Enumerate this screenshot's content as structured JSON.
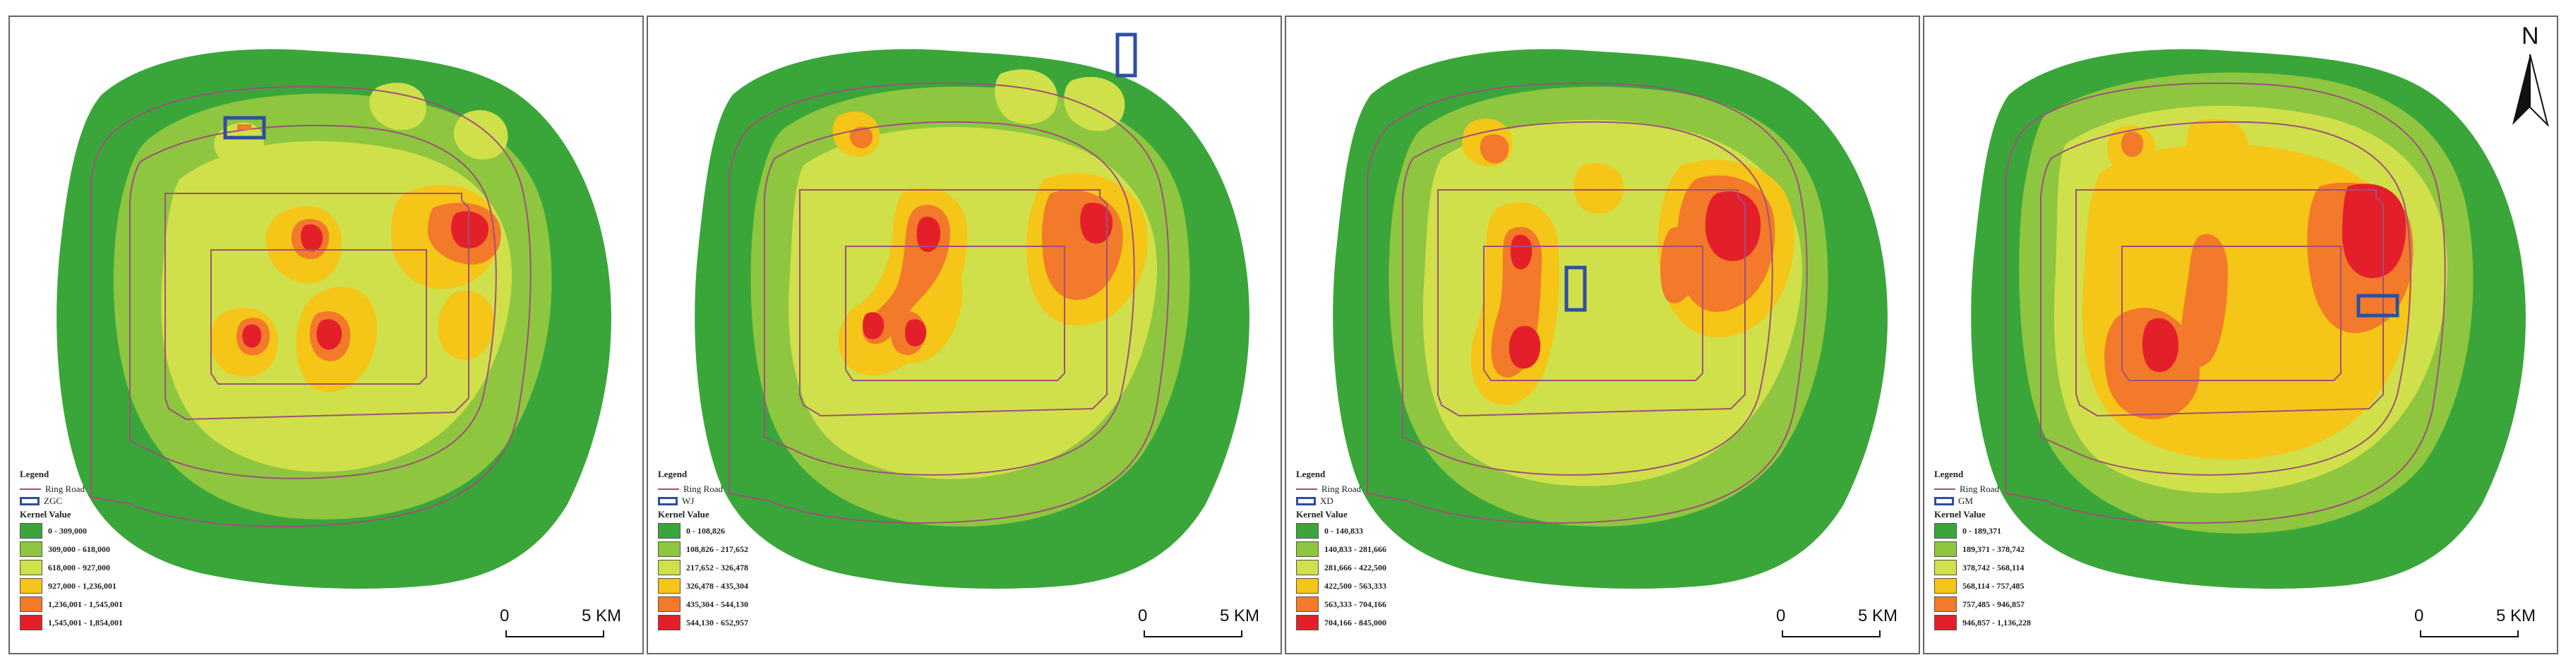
{
  "colors": {
    "c1": "#3aa63a",
    "c2": "#8ec63f",
    "c3": "#cfe04a",
    "c4": "#f5c518",
    "c5": "#f27a2a",
    "c6": "#e3202a",
    "ring": "#a0507a",
    "aoi": "#2f4f9f"
  },
  "panels": [
    {
      "legend_title": "Legend",
      "ring_road_label": "Ring Road",
      "aoi_label": "ZGC",
      "kernel_title": "Kernel Value",
      "classes": [
        "0 - 309,000",
        "309,000 - 618,000",
        "618,000 - 927,000",
        "927,000 - 1,236,001",
        "1,236,001 - 1,545,001",
        "1,545,001 - 1,854,001"
      ],
      "scale": {
        "zero": "0",
        "five": "5 KM"
      }
    },
    {
      "legend_title": "Legend",
      "ring_road_label": "Ring Road",
      "aoi_label": "WJ",
      "kernel_title": "Kernel Value",
      "classes": [
        "0 - 108,826",
        "108,826 - 217,652",
        "217,652 - 326,478",
        "326,478 - 435,304",
        "435,304 - 544,130",
        "544,130 - 652,957"
      ],
      "scale": {
        "zero": "0",
        "five": "5 KM"
      }
    },
    {
      "legend_title": "Legend",
      "ring_road_label": "Ring Road",
      "aoi_label": "XD",
      "kernel_title": "Kernel Value",
      "classes": [
        "0 - 140,833",
        "140,833 - 281,666",
        "281,666 - 422,500",
        "422,500 - 563,333",
        "563,333 - 704,166",
        "704,166 - 845,000"
      ],
      "scale": {
        "zero": "0",
        "five": "5 KM"
      }
    },
    {
      "legend_title": "Legend",
      "ring_road_label": "Ring Road",
      "aoi_label": "GM",
      "kernel_title": "Kernel Value",
      "classes": [
        "0 - 189,371",
        "189,371 - 378,742",
        "378,742 - 568,114",
        "568,114 - 757,485",
        "757,485 - 946,857",
        "946,857 - 1,136,228"
      ],
      "scale": {
        "zero": "0",
        "five": "5 KM"
      }
    }
  ],
  "north_arrow": {
    "label": "N",
    "icon": "north-arrow-icon"
  }
}
